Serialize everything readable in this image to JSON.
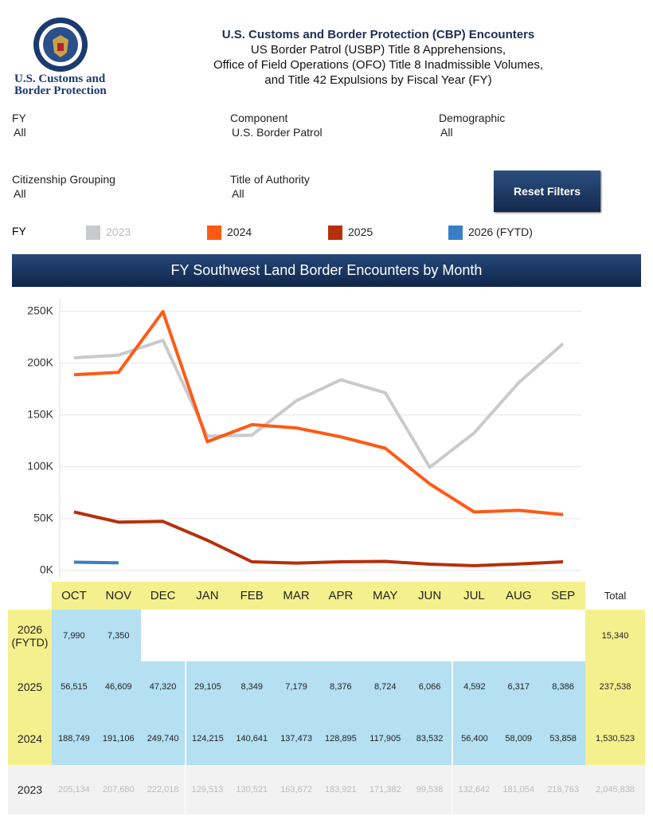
{
  "header": {
    "logo_lines": [
      "U.S. Customs and",
      "Border Protection"
    ],
    "title": "U.S. Customs and Border Protection (CBP) Encounters",
    "subtitle_lines": [
      "US Border Patrol (USBP) Title 8 Apprehensions,",
      "Office of Field Operations (OFO) Title 8 Inadmissible Volumes,",
      "and Title 42 Expulsions by Fiscal Year (FY)"
    ]
  },
  "filters": [
    {
      "label": "FY",
      "value": "All"
    },
    {
      "label": "Component",
      "value": "U.S. Border Patrol"
    },
    {
      "label": "Demographic",
      "value": "All"
    },
    {
      "label": "Citizenship Grouping",
      "value": "All"
    },
    {
      "label": "Title of Authority",
      "value": "All"
    }
  ],
  "reset_button": "Reset Filters",
  "legend_title": "FY",
  "chart_data": {
    "type": "line",
    "title": "FY Southwest Land Border Encounters by Month",
    "categories": [
      "OCT",
      "NOV",
      "DEC",
      "JAN",
      "FEB",
      "MAR",
      "APR",
      "MAY",
      "JUN",
      "JUL",
      "AUG",
      "SEP"
    ],
    "series": [
      {
        "name": "2023",
        "color": "#c9cacd",
        "values": [
          205134,
          207680,
          222018,
          129513,
          130521,
          163672,
          183921,
          171382,
          99538,
          132642,
          181054,
          218763
        ],
        "value_labels": [
          "205,134",
          "207,680",
          "222,018",
          "129,513",
          "130,521",
          "163,672",
          "183,921",
          "171,382",
          "99,538",
          "132,642",
          "181,054",
          "218,763"
        ]
      },
      {
        "name": "2024",
        "color": "#ff5a14",
        "values": [
          188749,
          191106,
          249740,
          124215,
          140641,
          137473,
          128895,
          117905,
          83532,
          56400,
          58009,
          53858
        ],
        "value_labels": [
          "188,749",
          "191,106",
          "249,740",
          "124,215",
          "140,641",
          "137,473",
          "128,895",
          "117,905",
          "83,532",
          "56,400",
          "58,009",
          "53,858"
        ]
      },
      {
        "name": "2025",
        "color": "#b5300b",
        "values": [
          56515,
          46609,
          47320,
          29105,
          8349,
          7179,
          8376,
          8724,
          6066,
          4592,
          6317,
          8386
        ],
        "value_labels": [
          "56,515",
          "46,609",
          "47,320",
          "29,105",
          "8,349",
          "7,179",
          "8,376",
          "8,724",
          "6,066",
          "4,592",
          "6,317",
          "8,386"
        ]
      },
      {
        "name": "2026 (FYTD)",
        "color": "#3a7fc4",
        "values": [
          7990,
          7350,
          null,
          null,
          null,
          null,
          null,
          null,
          null,
          null,
          null,
          null
        ],
        "value_labels": [
          "7,990",
          "7,350",
          null,
          null,
          null,
          null,
          null,
          null,
          null,
          null,
          null,
          null
        ]
      }
    ],
    "ylim": [
      -7000,
      262000
    ],
    "yticks": [
      {
        "value": 0,
        "label": "0K"
      },
      {
        "value": 50000,
        "label": "50K"
      },
      {
        "value": 100000,
        "label": "100K"
      },
      {
        "value": 150000,
        "label": "150K"
      },
      {
        "value": 200000,
        "label": "200K"
      },
      {
        "value": 250000,
        "label": "250K"
      }
    ],
    "grid": true
  },
  "table": {
    "total_header": "Total",
    "totals": [
      "2,045,838",
      "1,530,523",
      "237,538",
      "15,340"
    ]
  }
}
